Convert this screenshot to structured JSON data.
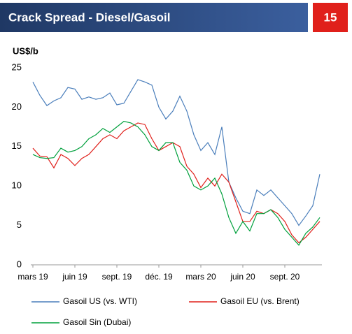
{
  "header": {
    "title": "Crack Spread - Diesel/Gasoil",
    "page_number": "15"
  },
  "chart_data": {
    "type": "line",
    "y_label": "US$/b",
    "x": [
      0,
      0.5,
      1,
      1.5,
      2,
      2.5,
      3,
      3.5,
      4,
      4.5,
      5,
      5.5,
      6,
      6.5,
      7,
      7.5,
      8,
      8.5,
      9,
      9.5,
      10,
      10.5,
      11,
      11.5,
      12,
      12.5,
      13,
      13.5,
      14,
      14.5,
      15,
      15.5,
      16,
      16.5,
      17,
      17.5,
      18,
      18.5,
      19,
      19.5,
      20,
      20.5
    ],
    "xlim": [
      0,
      20.6
    ],
    "xticks": [
      {
        "value": 0,
        "label": "mars 19"
      },
      {
        "value": 3,
        "label": "juin 19"
      },
      {
        "value": 6,
        "label": "sept. 19"
      },
      {
        "value": 9,
        "label": "déc. 19"
      },
      {
        "value": 12,
        "label": "mars 20"
      },
      {
        "value": 15,
        "label": "juin 20"
      },
      {
        "value": 18,
        "label": "sept. 20"
      }
    ],
    "ylim": [
      0,
      25
    ],
    "yticks": [
      0,
      5,
      10,
      15,
      20,
      25
    ],
    "grid": false,
    "series": [
      {
        "name": "Gasoil US (vs. WTI)",
        "color": "#4a7ebb",
        "values": [
          23.2,
          21.5,
          20.2,
          20.8,
          21.2,
          22.5,
          22.3,
          21.0,
          21.3,
          21.0,
          21.2,
          21.8,
          20.3,
          20.5,
          22.0,
          23.5,
          23.2,
          22.8,
          20.0,
          18.5,
          19.5,
          21.4,
          19.5,
          16.5,
          14.5,
          15.5,
          14.0,
          17.5,
          10.5,
          8.5,
          6.8,
          6.5,
          9.5,
          8.8,
          9.5,
          8.5,
          7.5,
          6.5,
          5.0,
          6.2,
          7.5,
          11.5
        ]
      },
      {
        "name": "Gasoil EU (vs. Brent)",
        "color": "#e0201b",
        "values": [
          14.8,
          13.8,
          13.7,
          12.3,
          14.0,
          13.5,
          12.6,
          13.5,
          14.0,
          15.0,
          16.0,
          16.5,
          16.0,
          17.0,
          17.5,
          18.0,
          17.8,
          16.0,
          14.5,
          15.0,
          15.5,
          15.0,
          12.5,
          11.5,
          9.8,
          11.0,
          10.0,
          11.5,
          10.5,
          8.0,
          5.5,
          5.5,
          6.8,
          6.5,
          7.0,
          6.5,
          5.5,
          3.8,
          2.8,
          3.5,
          4.5,
          5.5
        ]
      },
      {
        "name": "Gasoil Sin (Dubai)",
        "color": "#00a03c",
        "values": [
          14.0,
          13.6,
          13.5,
          13.6,
          14.8,
          14.3,
          14.5,
          15.0,
          16.0,
          16.5,
          17.3,
          16.8,
          17.5,
          18.2,
          18.0,
          17.5,
          16.5,
          15.0,
          14.5,
          15.5,
          15.5,
          13.0,
          12.0,
          10.0,
          9.5,
          10.0,
          11.0,
          9.0,
          6.0,
          4.0,
          5.5,
          4.3,
          6.5,
          6.5,
          7.0,
          6.0,
          4.5,
          3.5,
          2.5,
          4.0,
          4.8,
          6.0
        ]
      }
    ]
  }
}
